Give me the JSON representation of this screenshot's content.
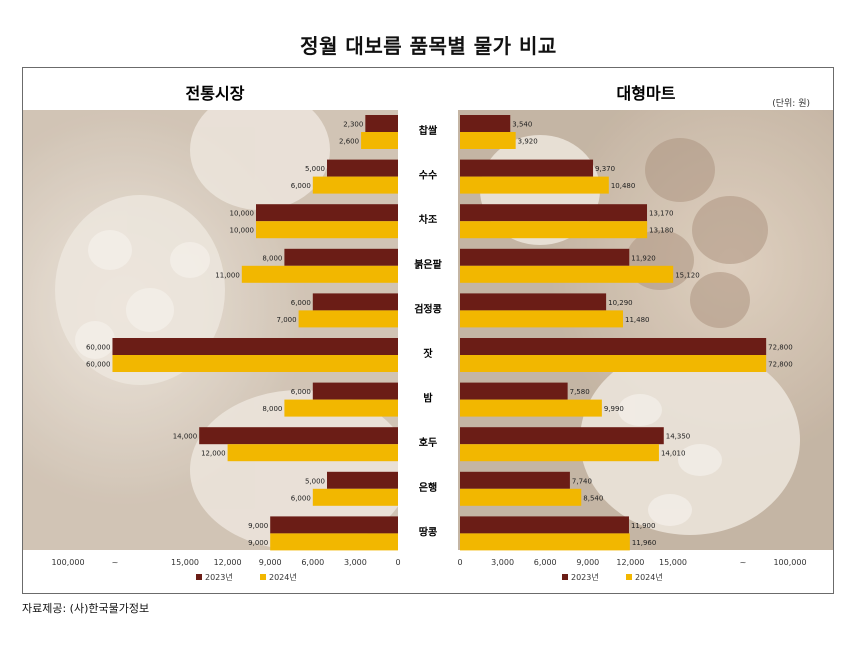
{
  "title": "정월 대보름 품목별 물가 비교",
  "unit": "(단위: 원)",
  "source": "자료제공: (사)한국물가정보",
  "colors": {
    "y2023": "#6b1d16",
    "y2024": "#f2b700",
    "photo_light": "#efe7dc",
    "photo_dark": "#b5a28c"
  },
  "chart_data": {
    "type": "bar",
    "categories": [
      "찹쌀",
      "수수",
      "차조",
      "붉은팥",
      "검정콩",
      "잣",
      "밤",
      "호두",
      "은행",
      "땅콩"
    ],
    "series_names": [
      "2023년",
      "2024년"
    ],
    "panels": [
      {
        "name": "전통시장",
        "direction": "left",
        "series": [
          {
            "name": "2023년",
            "values": [
              2300,
              5000,
              10000,
              8000,
              6000,
              60000,
              6000,
              14000,
              5000,
              9000
            ],
            "labels": [
              "2,300",
              "5,000",
              "10,000",
              "8,000",
              "6,000",
              "60,000",
              "6,000",
              "14,000",
              "5,000",
              "9,000"
            ]
          },
          {
            "name": "2024년",
            "values": [
              2600,
              6000,
              10000,
              11000,
              7000,
              60000,
              8000,
              12000,
              6000,
              9000
            ],
            "labels": [
              "2,600",
              "6,000",
              "10,000",
              "11,000",
              "7,000",
              "60,000",
              "8,000",
              "12,000",
              "6,000",
              "9,000"
            ]
          }
        ],
        "ticks": [
          "0",
          "3,000",
          "6,000",
          "9,000",
          "12,000",
          "15,000",
          "~",
          "100,000"
        ]
      },
      {
        "name": "대형마트",
        "direction": "right",
        "series": [
          {
            "name": "2023년",
            "values": [
              3540,
              9370,
              13170,
              11920,
              10290,
              72800,
              7580,
              14350,
              7740,
              11900
            ],
            "labels": [
              "3,540",
              "9,370",
              "13,170",
              "11,920",
              "10,290",
              "72,800",
              "7,580",
              "14,350",
              "7,740",
              "11,900"
            ]
          },
          {
            "name": "2024년",
            "values": [
              3920,
              10480,
              13180,
              15120,
              11480,
              72800,
              9990,
              14010,
              8540,
              11960
            ],
            "labels": [
              "3,920",
              "10,480",
              "13,180",
              "15,120",
              "11,480",
              "72,800",
              "9,990",
              "14,010",
              "8,540",
              "11,960"
            ]
          }
        ],
        "ticks": [
          "0",
          "3,000",
          "6,000",
          "9,000",
          "12,000",
          "15,000",
          "~",
          "100,000"
        ]
      }
    ],
    "axis": {
      "xlim": [
        0,
        100000
      ],
      "break_after": 15000
    },
    "legend": "bottom"
  }
}
